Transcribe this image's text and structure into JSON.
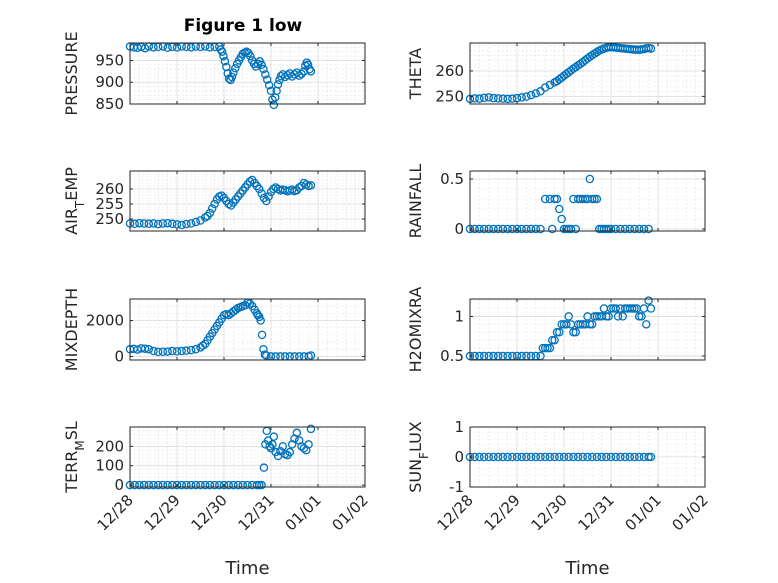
{
  "figure_title": "Figure 1 low",
  "marker_color": "#0072BD",
  "x_categories": [
    "12/28",
    "12/29",
    "12/30",
    "12/31",
    "01/01",
    "01/02"
  ],
  "chart_data": [
    {
      "type": "scatter",
      "title": "Figure 1 low",
      "ylabel": "PRESSURE",
      "ylabel_parts": [
        {
          "t": "PRESSURE",
          "sub": false
        }
      ],
      "xlabel": "",
      "ylim": [
        850,
        990
      ],
      "yticks": [
        850,
        900,
        950
      ],
      "ytick_labels": [
        "850",
        "900",
        "950"
      ],
      "xlim": [
        0,
        5
      ],
      "xticks": [
        0,
        1,
        2,
        3,
        4,
        5
      ],
      "x": [
        0.0,
        0.08,
        0.16,
        0.24,
        0.32,
        0.4,
        0.5,
        0.6,
        0.7,
        0.8,
        0.9,
        1.0,
        1.1,
        1.2,
        1.3,
        1.4,
        1.5,
        1.6,
        1.7,
        1.8,
        1.9,
        1.93,
        1.96,
        1.99,
        2.02,
        2.05,
        2.08,
        2.11,
        2.14,
        2.17,
        2.2,
        2.24,
        2.28,
        2.32,
        2.36,
        2.4,
        2.44,
        2.48,
        2.52,
        2.56,
        2.6,
        2.64,
        2.68,
        2.72,
        2.76,
        2.8,
        2.84,
        2.88,
        2.92,
        2.96,
        3.0,
        3.03,
        3.06,
        3.09,
        3.12,
        3.15,
        3.18,
        3.21,
        3.25,
        3.3,
        3.35,
        3.4,
        3.45,
        3.5,
        3.55,
        3.6,
        3.65,
        3.7,
        3.73,
        3.76,
        3.79,
        3.82,
        3.85
      ],
      "y": [
        982,
        980,
        979,
        981,
        978,
        982,
        980,
        981,
        982,
        979,
        981,
        980,
        982,
        981,
        980,
        982,
        981,
        982,
        980,
        981,
        982,
        975,
        970,
        960,
        948,
        935,
        920,
        908,
        905,
        912,
        922,
        932,
        942,
        950,
        958,
        965,
        968,
        970,
        967,
        960,
        950,
        942,
        936,
        942,
        948,
        940,
        930,
        918,
        906,
        893,
        880,
        860,
        848,
        865,
        880,
        895,
        905,
        914,
        918,
        912,
        916,
        920,
        913,
        918,
        922,
        915,
        919,
        925,
        938,
        945,
        940,
        930,
        925
      ]
    },
    {
      "type": "scatter",
      "ylabel": "THETA",
      "ylabel_parts": [
        {
          "t": "THETA",
          "sub": false
        }
      ],
      "xlabel": "",
      "ylim": [
        247,
        271
      ],
      "yticks": [
        250,
        260
      ],
      "ytick_labels": [
        "250",
        "260"
      ],
      "xlim": [
        0,
        5
      ],
      "xticks": [
        0,
        1,
        2,
        3,
        4,
        5
      ],
      "x": [
        0.0,
        0.1,
        0.2,
        0.3,
        0.4,
        0.5,
        0.6,
        0.7,
        0.8,
        0.9,
        1.0,
        1.1,
        1.2,
        1.3,
        1.4,
        1.5,
        1.6,
        1.7,
        1.8,
        1.85,
        1.9,
        1.95,
        2.0,
        2.05,
        2.1,
        2.15,
        2.2,
        2.25,
        2.3,
        2.35,
        2.4,
        2.45,
        2.5,
        2.55,
        2.6,
        2.65,
        2.7,
        2.75,
        2.8,
        2.85,
        2.9,
        2.95,
        3.0,
        3.05,
        3.1,
        3.15,
        3.2,
        3.25,
        3.3,
        3.35,
        3.4,
        3.45,
        3.5,
        3.55,
        3.6,
        3.65,
        3.7,
        3.75,
        3.8,
        3.85
      ],
      "y": [
        249,
        249.2,
        249.1,
        249.4,
        249.6,
        249.3,
        249.2,
        249.1,
        249.0,
        249.1,
        249.3,
        249.6,
        249.9,
        250.5,
        251.2,
        252,
        253.5,
        254.5,
        255.5,
        256,
        256.7,
        257.4,
        258.1,
        258.8,
        259.5,
        260.2,
        260.9,
        261.5,
        262.2,
        262.8,
        263.5,
        264.2,
        264.9,
        265.6,
        266.2,
        266.8,
        267.4,
        268,
        268.4,
        268.8,
        269.1,
        269.3,
        269.4,
        269.3,
        269.2,
        269.1,
        269.0,
        268.9,
        268.8,
        268.7,
        268.6,
        268.5,
        268.4,
        268.4,
        268.3,
        268.5,
        268.6,
        268.9,
        269.0,
        268.8
      ]
    },
    {
      "type": "scatter",
      "ylabel": "AIR_TEMP",
      "ylabel_parts": [
        {
          "t": "AIR",
          "sub": false
        },
        {
          "t": "T",
          "sub": true
        },
        {
          "t": "EMP",
          "sub": false
        }
      ],
      "xlabel": "",
      "ylim": [
        246,
        266
      ],
      "yticks": [
        250,
        255,
        260
      ],
      "ytick_labels": [
        "250",
        "255",
        "260"
      ],
      "xlim": [
        0,
        5
      ],
      "xticks": [
        0,
        1,
        2,
        3,
        4,
        5
      ],
      "x": [
        0.0,
        0.1,
        0.2,
        0.3,
        0.4,
        0.5,
        0.6,
        0.7,
        0.8,
        0.9,
        1.0,
        1.1,
        1.2,
        1.3,
        1.4,
        1.5,
        1.6,
        1.65,
        1.7,
        1.75,
        1.8,
        1.85,
        1.9,
        1.95,
        2.0,
        2.05,
        2.1,
        2.15,
        2.2,
        2.25,
        2.3,
        2.35,
        2.4,
        2.45,
        2.5,
        2.55,
        2.6,
        2.65,
        2.7,
        2.75,
        2.8,
        2.85,
        2.9,
        2.95,
        3.0,
        3.05,
        3.1,
        3.15,
        3.2,
        3.25,
        3.3,
        3.35,
        3.4,
        3.45,
        3.5,
        3.55,
        3.6,
        3.65,
        3.7,
        3.75,
        3.8,
        3.85
      ],
      "y": [
        248.5,
        248.4,
        248.6,
        248.5,
        248.4,
        248.5,
        248.3,
        248.5,
        248.6,
        248.4,
        248.2,
        248.0,
        248.3,
        248.5,
        249.0,
        249.5,
        250.5,
        251.0,
        252.0,
        253.5,
        255.0,
        256.5,
        257.5,
        257.8,
        257.0,
        256.0,
        255.0,
        254.5,
        255.5,
        256.5,
        257.5,
        258.5,
        259.5,
        260.5,
        261.5,
        262.5,
        263.0,
        262.0,
        261.0,
        260.0,
        258.5,
        257.0,
        256.0,
        257.5,
        259.0,
        260.0,
        260.5,
        260.0,
        259.5,
        259.8,
        259.6,
        259.2,
        259.5,
        259.8,
        259.3,
        259.6,
        260.5,
        261.0,
        262.0,
        261.5,
        261.0,
        261.2
      ]
    },
    {
      "type": "scatter",
      "ylabel": "RAINFALL",
      "ylabel_parts": [
        {
          "t": "RAINFALL",
          "sub": false
        }
      ],
      "xlabel": "",
      "ylim": [
        -0.02,
        0.58
      ],
      "yticks": [
        0,
        0.5
      ],
      "ytick_labels": [
        "0",
        "0.5"
      ],
      "xlim": [
        0,
        5
      ],
      "xticks": [
        0,
        1,
        2,
        3,
        4,
        5
      ],
      "x": [
        0.0,
        0.1,
        0.2,
        0.3,
        0.4,
        0.5,
        0.6,
        0.7,
        0.8,
        0.9,
        1.0,
        1.1,
        1.2,
        1.3,
        1.4,
        1.5,
        1.6,
        1.7,
        1.75,
        1.8,
        1.85,
        1.9,
        1.95,
        2.0,
        2.05,
        2.1,
        2.15,
        2.2,
        2.25,
        2.3,
        2.35,
        2.4,
        2.45,
        2.5,
        2.55,
        2.6,
        2.65,
        2.7,
        2.75,
        2.8,
        2.85,
        2.9,
        2.95,
        3.0,
        3.1,
        3.2,
        3.3,
        3.4,
        3.5,
        3.6,
        3.7,
        3.8
      ],
      "y": [
        0,
        0,
        0,
        0,
        0,
        0,
        0,
        0,
        0,
        0,
        0,
        0,
        0,
        0,
        0,
        0,
        0.3,
        0.3,
        0,
        0.3,
        0.3,
        0.2,
        0.1,
        0,
        0,
        0,
        0,
        0.3,
        0,
        0.3,
        0.3,
        0.3,
        0.3,
        0.3,
        0.5,
        0.3,
        0.3,
        0.3,
        0,
        0,
        0,
        0,
        0,
        0,
        0,
        0,
        0,
        0,
        0,
        0,
        0,
        0
      ]
    },
    {
      "type": "scatter",
      "ylabel": "MIXDEPTH",
      "ylabel_parts": [
        {
          "t": "MIXDEPTH",
          "sub": false
        }
      ],
      "xlabel": "",
      "ylim": [
        -200,
        3200
      ],
      "yticks": [
        0,
        2000
      ],
      "ytick_labels": [
        "0",
        "2000"
      ],
      "xlim": [
        0,
        5
      ],
      "xticks": [
        0,
        1,
        2,
        3,
        4,
        5
      ],
      "x": [
        0.0,
        0.08,
        0.16,
        0.24,
        0.32,
        0.4,
        0.5,
        0.6,
        0.7,
        0.8,
        0.9,
        1.0,
        1.1,
        1.2,
        1.3,
        1.4,
        1.5,
        1.55,
        1.6,
        1.65,
        1.7,
        1.75,
        1.8,
        1.85,
        1.9,
        1.95,
        2.0,
        2.05,
        2.1,
        2.15,
        2.2,
        2.25,
        2.3,
        2.35,
        2.4,
        2.45,
        2.5,
        2.55,
        2.6,
        2.65,
        2.7,
        2.72,
        2.75,
        2.78,
        2.81,
        2.84,
        2.87,
        2.9,
        3.0,
        3.1,
        3.2,
        3.3,
        3.4,
        3.5,
        3.6,
        3.7,
        3.8,
        3.85
      ],
      "y": [
        400,
        420,
        380,
        450,
        430,
        400,
        300,
        250,
        260,
        270,
        300,
        280,
        300,
        320,
        350,
        400,
        500,
        600,
        700,
        900,
        1100,
        1300,
        1500,
        1700,
        1900,
        2100,
        2300,
        2350,
        2300,
        2400,
        2500,
        2600,
        2700,
        2750,
        2800,
        2850,
        3000,
        2950,
        2800,
        2600,
        2400,
        2300,
        2200,
        2000,
        1200,
        400,
        100,
        50,
        0,
        0,
        0,
        0,
        0,
        0,
        0,
        0,
        0,
        50
      ]
    },
    {
      "type": "scatter",
      "ylabel": "H2OMIXRA",
      "ylabel_parts": [
        {
          "t": "H2OMIXRA",
          "sub": false
        }
      ],
      "xlabel": "",
      "ylim": [
        0.45,
        1.22
      ],
      "yticks": [
        0.5,
        1
      ],
      "ytick_labels": [
        "0.5",
        "1"
      ],
      "xlim": [
        0,
        5
      ],
      "xticks": [
        0,
        1,
        2,
        3,
        4,
        5
      ],
      "x": [
        0.0,
        0.1,
        0.2,
        0.3,
        0.4,
        0.5,
        0.6,
        0.7,
        0.8,
        0.9,
        1.0,
        1.1,
        1.2,
        1.3,
        1.4,
        1.5,
        1.55,
        1.6,
        1.65,
        1.7,
        1.75,
        1.8,
        1.85,
        1.9,
        1.95,
        2.0,
        2.05,
        2.1,
        2.15,
        2.2,
        2.25,
        2.3,
        2.35,
        2.4,
        2.45,
        2.5,
        2.55,
        2.6,
        2.65,
        2.7,
        2.75,
        2.8,
        2.85,
        2.9,
        2.95,
        3.0,
        3.05,
        3.1,
        3.15,
        3.2,
        3.25,
        3.3,
        3.35,
        3.4,
        3.45,
        3.5,
        3.55,
        3.6,
        3.65,
        3.7,
        3.75,
        3.8,
        3.85
      ],
      "y": [
        0.5,
        0.5,
        0.5,
        0.5,
        0.5,
        0.5,
        0.5,
        0.5,
        0.5,
        0.5,
        0.5,
        0.5,
        0.5,
        0.5,
        0.5,
        0.5,
        0.6,
        0.6,
        0.6,
        0.6,
        0.7,
        0.7,
        0.8,
        0.8,
        0.9,
        0.9,
        0.9,
        1.0,
        0.9,
        0.8,
        0.8,
        0.9,
        0.9,
        0.9,
        0.9,
        1.0,
        0.9,
        0.9,
        1.0,
        1.0,
        1.0,
        1.0,
        1.1,
        1.0,
        1.0,
        1.1,
        1.1,
        1.1,
        1.0,
        1.1,
        1.0,
        1.1,
        1.1,
        1.1,
        1.1,
        1.1,
        1.1,
        1.0,
        1.0,
        1.1,
        0.9,
        1.2,
        1.1
      ]
    },
    {
      "type": "scatter",
      "ylabel": "TERR_MSL",
      "ylabel_parts": [
        {
          "t": "TERR",
          "sub": false
        },
        {
          "t": "M",
          "sub": true
        },
        {
          "t": "SL",
          "sub": false
        }
      ],
      "xlabel": "Time",
      "ylim": [
        -10,
        300
      ],
      "yticks": [
        0,
        100,
        200
      ],
      "ytick_labels": [
        "0",
        "100",
        "200"
      ],
      "xlim": [
        0,
        5
      ],
      "xticks": [
        0,
        1,
        2,
        3,
        4,
        5
      ],
      "x": [
        0.0,
        0.1,
        0.2,
        0.3,
        0.4,
        0.5,
        0.6,
        0.7,
        0.8,
        0.9,
        1.0,
        1.1,
        1.2,
        1.3,
        1.4,
        1.5,
        1.6,
        1.7,
        1.8,
        1.9,
        2.0,
        2.1,
        2.2,
        2.3,
        2.4,
        2.5,
        2.6,
        2.7,
        2.75,
        2.8,
        2.85,
        2.88,
        2.91,
        2.94,
        2.97,
        3.0,
        3.03,
        3.06,
        3.1,
        3.15,
        3.2,
        3.25,
        3.3,
        3.35,
        3.4,
        3.45,
        3.5,
        3.55,
        3.6,
        3.65,
        3.7,
        3.75,
        3.8,
        3.85
      ],
      "y": [
        0,
        0,
        0,
        0,
        0,
        0,
        0,
        0,
        0,
        0,
        0,
        0,
        0,
        0,
        0,
        0,
        0,
        0,
        0,
        0,
        0,
        0,
        0,
        0,
        0,
        0,
        0,
        0,
        0,
        0,
        90,
        210,
        280,
        230,
        200,
        190,
        210,
        250,
        170,
        150,
        175,
        200,
        160,
        155,
        170,
        210,
        240,
        270,
        230,
        200,
        190,
        180,
        210,
        290
      ]
    },
    {
      "type": "scatter",
      "ylabel": "SUN_FLUX",
      "ylabel_parts": [
        {
          "t": "SUN",
          "sub": false
        },
        {
          "t": "F",
          "sub": true
        },
        {
          "t": "LUX",
          "sub": false
        }
      ],
      "xlabel": "Time",
      "ylim": [
        -1,
        1
      ],
      "yticks": [
        -1,
        0,
        1
      ],
      "ytick_labels": [
        "-1",
        "0",
        "1"
      ],
      "xlim": [
        0,
        5
      ],
      "xticks": [
        0,
        1,
        2,
        3,
        4,
        5
      ],
      "x": [
        0.0,
        0.1,
        0.2,
        0.3,
        0.4,
        0.5,
        0.6,
        0.7,
        0.8,
        0.9,
        1.0,
        1.1,
        1.2,
        1.3,
        1.4,
        1.5,
        1.6,
        1.7,
        1.8,
        1.9,
        2.0,
        2.1,
        2.2,
        2.3,
        2.4,
        2.5,
        2.6,
        2.7,
        2.8,
        2.9,
        3.0,
        3.1,
        3.2,
        3.3,
        3.4,
        3.5,
        3.6,
        3.7,
        3.8,
        3.85
      ],
      "y": [
        0,
        0,
        0,
        0,
        0,
        0,
        0,
        0,
        0,
        0,
        0,
        0,
        0,
        0,
        0,
        0,
        0,
        0,
        0,
        0,
        0,
        0,
        0,
        0,
        0,
        0,
        0,
        0,
        0,
        0,
        0,
        0,
        0,
        0,
        0,
        0,
        0,
        0,
        0,
        0
      ]
    }
  ]
}
